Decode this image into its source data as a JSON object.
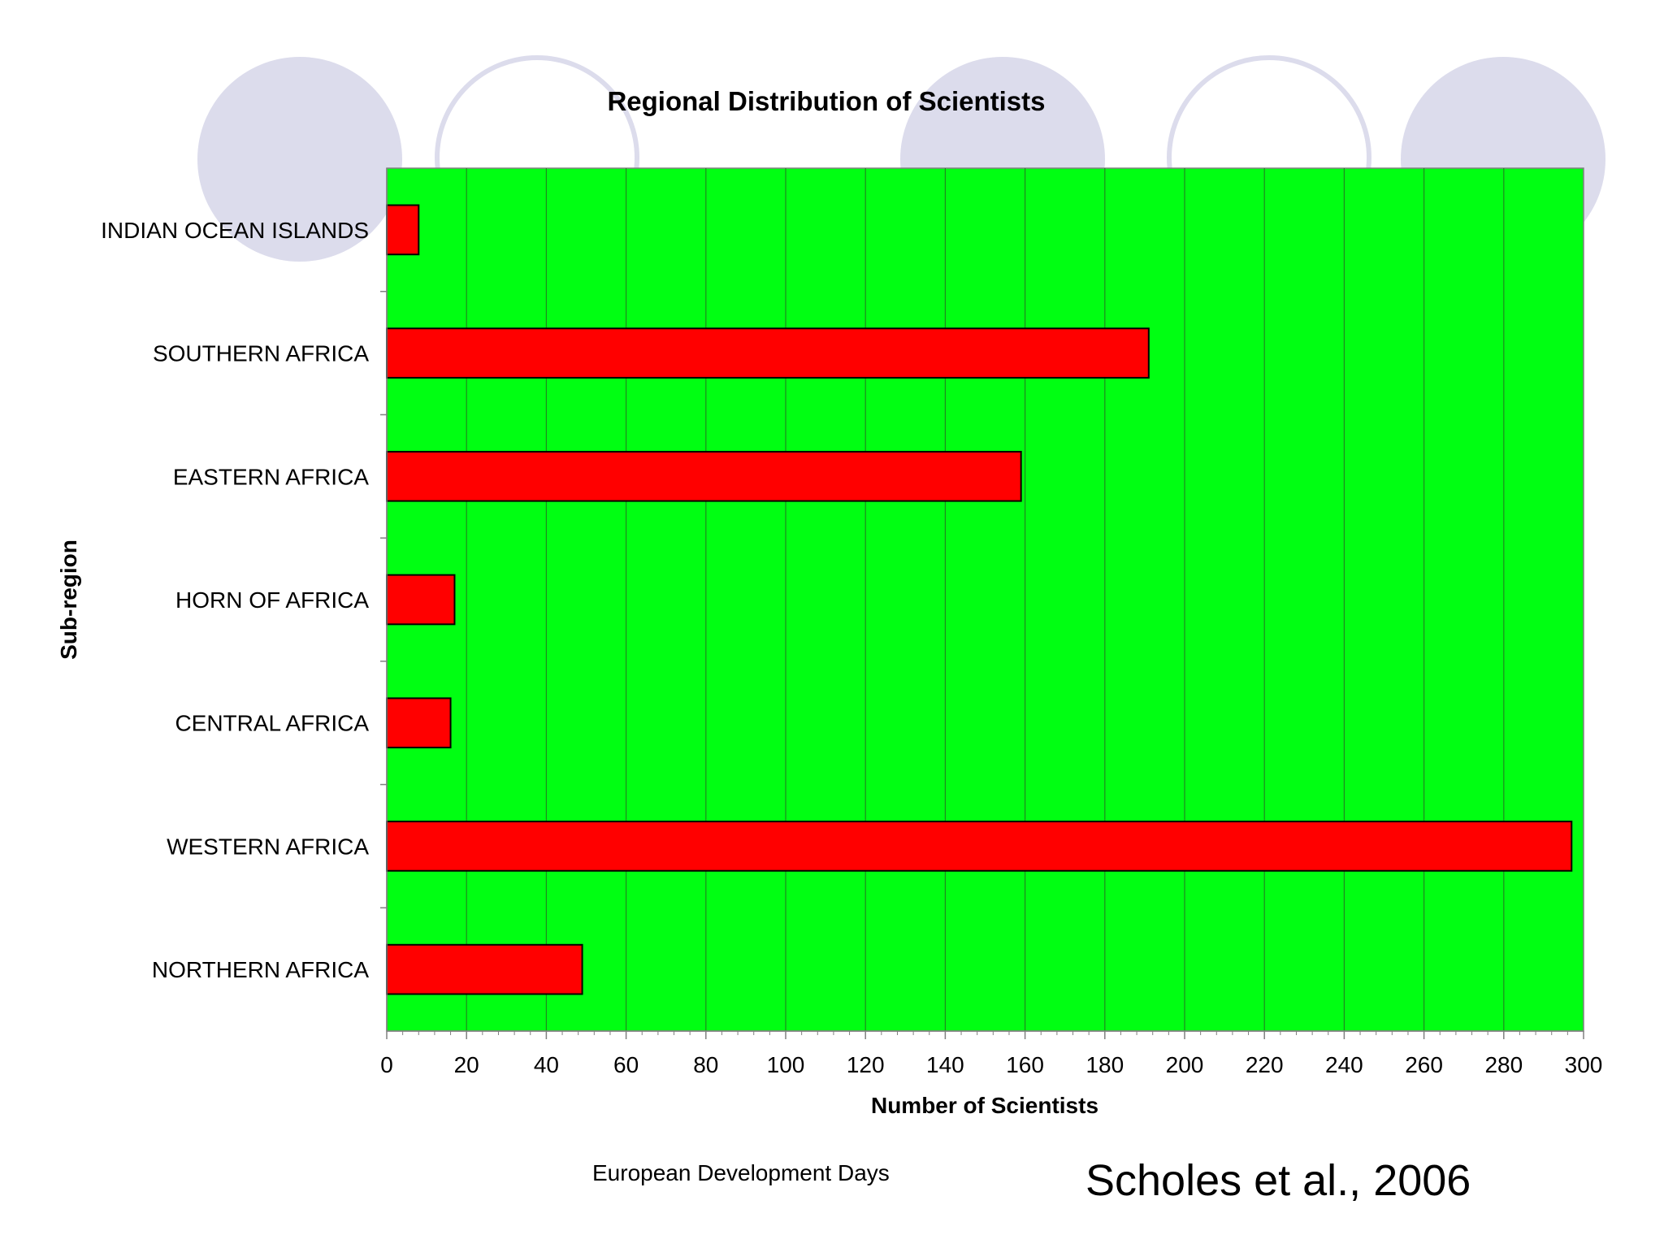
{
  "chart_data": {
    "type": "bar",
    "orientation": "horizontal",
    "title": "Regional Distribution of Scientists",
    "xlabel": "Number of Scientists",
    "ylabel": "Sub-region",
    "categories": [
      "INDIAN OCEAN ISLANDS",
      "SOUTHERN AFRICA",
      "EASTERN AFRICA",
      "HORN OF AFRICA",
      "CENTRAL AFRICA",
      "WESTERN AFRICA",
      "NORTHERN AFRICA"
    ],
    "values": [
      8,
      191,
      159,
      17,
      16,
      297,
      49
    ],
    "xlim": [
      0,
      300
    ],
    "xticks": [
      0,
      20,
      40,
      60,
      80,
      100,
      120,
      140,
      160,
      180,
      200,
      220,
      240,
      260,
      280,
      300
    ],
    "grid": "vertical",
    "legend": "none",
    "colors": {
      "plot_background": "#00ff12",
      "bar_fill": "#ff0000",
      "bar_stroke": "#000000",
      "gridline": "#1f8a1f"
    }
  },
  "footer": {
    "note": "European Development Days",
    "citation": "Scholes et al., 2006"
  },
  "decoration": {
    "circle_color": "#dcdcec"
  }
}
